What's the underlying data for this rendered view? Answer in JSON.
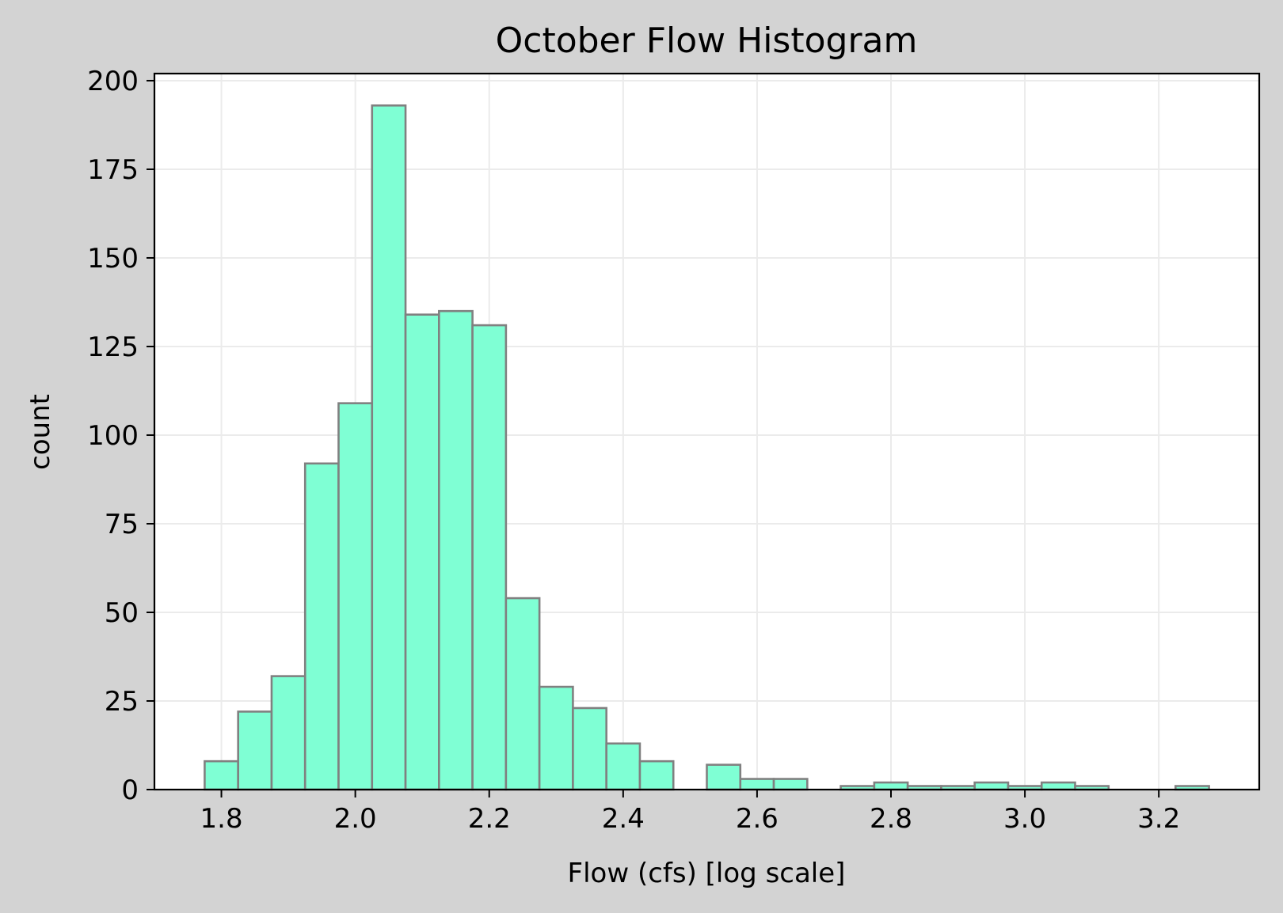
{
  "chart_data": {
    "type": "bar",
    "title": "October Flow Histogram",
    "xlabel": "Flow (cfs) [log scale]",
    "ylabel": "count",
    "xlim": [
      1.7,
      3.35
    ],
    "ylim": [
      0,
      202
    ],
    "grid": true,
    "x_ticks": [
      {
        "value": 1.8,
        "label": "1.8"
      },
      {
        "value": 2.0,
        "label": "2.0"
      },
      {
        "value": 2.2,
        "label": "2.2"
      },
      {
        "value": 2.4,
        "label": "2.4"
      },
      {
        "value": 2.6,
        "label": "2.6"
      },
      {
        "value": 2.8,
        "label": "2.8"
      },
      {
        "value": 3.0,
        "label": "3.0"
      },
      {
        "value": 3.2,
        "label": "3.2"
      }
    ],
    "y_ticks": [
      {
        "value": 0,
        "label": "0"
      },
      {
        "value": 25,
        "label": "25"
      },
      {
        "value": 50,
        "label": "50"
      },
      {
        "value": 75,
        "label": "75"
      },
      {
        "value": 100,
        "label": "100"
      },
      {
        "value": 125,
        "label": "125"
      },
      {
        "value": 150,
        "label": "150"
      },
      {
        "value": 175,
        "label": "175"
      },
      {
        "value": 200,
        "label": "200"
      }
    ],
    "bins": [
      {
        "x0": 1.775,
        "x1": 1.825,
        "count": 8
      },
      {
        "x0": 1.825,
        "x1": 1.875,
        "count": 22
      },
      {
        "x0": 1.875,
        "x1": 1.925,
        "count": 32
      },
      {
        "x0": 1.925,
        "x1": 1.975,
        "count": 92
      },
      {
        "x0": 1.975,
        "x1": 2.025,
        "count": 109
      },
      {
        "x0": 2.025,
        "x1": 2.075,
        "count": 193
      },
      {
        "x0": 2.075,
        "x1": 2.125,
        "count": 134
      },
      {
        "x0": 2.125,
        "x1": 2.175,
        "count": 135
      },
      {
        "x0": 2.175,
        "x1": 2.225,
        "count": 131
      },
      {
        "x0": 2.225,
        "x1": 2.275,
        "count": 54
      },
      {
        "x0": 2.275,
        "x1": 2.325,
        "count": 29
      },
      {
        "x0": 2.325,
        "x1": 2.375,
        "count": 23
      },
      {
        "x0": 2.375,
        "x1": 2.425,
        "count": 13
      },
      {
        "x0": 2.425,
        "x1": 2.475,
        "count": 8
      },
      {
        "x0": 2.475,
        "x1": 2.525,
        "count": 0
      },
      {
        "x0": 2.525,
        "x1": 2.575,
        "count": 7
      },
      {
        "x0": 2.575,
        "x1": 2.625,
        "count": 3
      },
      {
        "x0": 2.625,
        "x1": 2.675,
        "count": 3
      },
      {
        "x0": 2.675,
        "x1": 2.725,
        "count": 0
      },
      {
        "x0": 2.725,
        "x1": 2.775,
        "count": 1
      },
      {
        "x0": 2.775,
        "x1": 2.825,
        "count": 2
      },
      {
        "x0": 2.825,
        "x1": 2.875,
        "count": 1
      },
      {
        "x0": 2.875,
        "x1": 2.925,
        "count": 1
      },
      {
        "x0": 2.925,
        "x1": 2.975,
        "count": 2
      },
      {
        "x0": 2.975,
        "x1": 3.025,
        "count": 1
      },
      {
        "x0": 3.025,
        "x1": 3.075,
        "count": 2
      },
      {
        "x0": 3.075,
        "x1": 3.125,
        "count": 1
      },
      {
        "x0": 3.125,
        "x1": 3.175,
        "count": 0
      },
      {
        "x0": 3.175,
        "x1": 3.225,
        "count": 0
      },
      {
        "x0": 3.225,
        "x1": 3.275,
        "count": 1
      }
    ],
    "colors": {
      "bar_fill": "#7fffd4",
      "bar_edge": "#808080",
      "background": "#d3d3d3",
      "plot_background": "#ffffff",
      "grid": "#ebebeb"
    }
  }
}
